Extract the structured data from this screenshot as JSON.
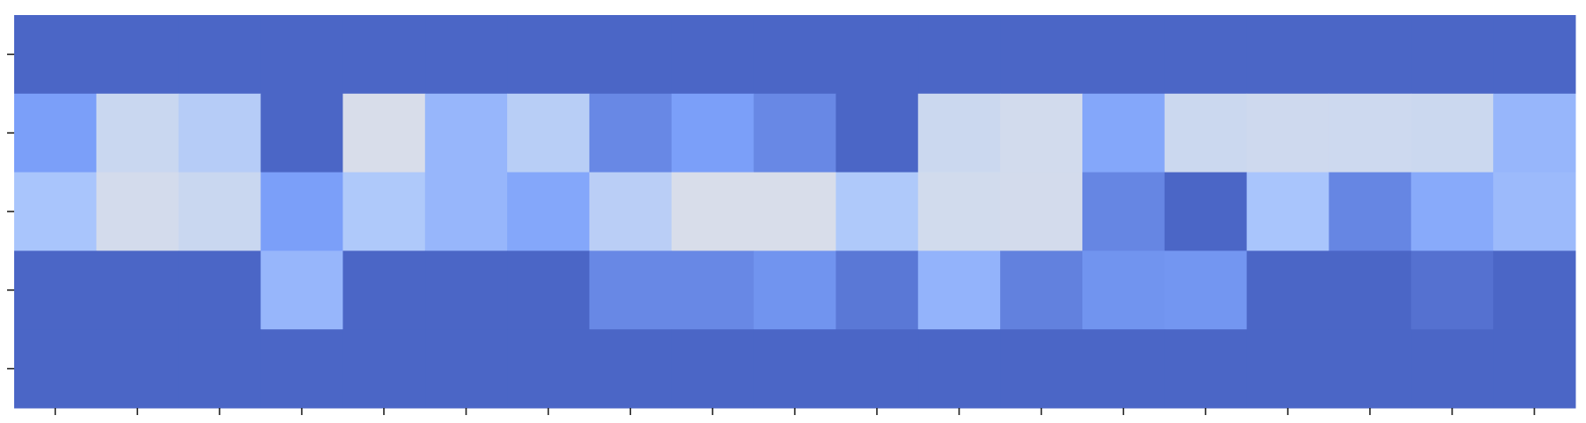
{
  "chart_data": {
    "type": "heatmap",
    "values": [
      [
        0,
        0,
        0,
        0,
        0,
        0,
        0,
        0,
        0,
        0,
        0,
        0,
        0,
        0,
        0,
        0,
        0,
        0,
        0
      ],
      [
        0.25,
        0.75,
        0.6,
        0,
        0.95,
        0.4,
        0.62,
        0.15,
        0.25,
        0.15,
        0,
        0.77,
        0.87,
        0.3,
        0.78,
        0.82,
        0.8,
        0.77,
        0.4
      ],
      [
        0.5,
        0.88,
        0.75,
        0.25,
        0.55,
        0.4,
        0.3,
        0.63,
        0.95,
        0.95,
        0.55,
        0.86,
        0.88,
        0.14,
        0,
        0.5,
        0.14,
        0.32,
        0.43
      ],
      [
        0,
        0,
        0,
        0.4,
        0,
        0,
        0,
        0.15,
        0.15,
        0.2,
        0.08,
        0.38,
        0.12,
        0.2,
        0.21,
        0,
        0,
        0.05,
        0
      ],
      [
        0,
        0,
        0,
        0,
        0,
        0,
        0,
        0,
        0,
        0,
        0,
        0,
        0,
        0,
        0,
        0,
        0,
        0,
        0
      ]
    ],
    "vlim": [
      0,
      1
    ],
    "colormap": [
      "#4b66c6",
      "#7b9ff9",
      "#a9c5fc",
      "#c9d7f0",
      "#dcdfe9"
    ]
  }
}
